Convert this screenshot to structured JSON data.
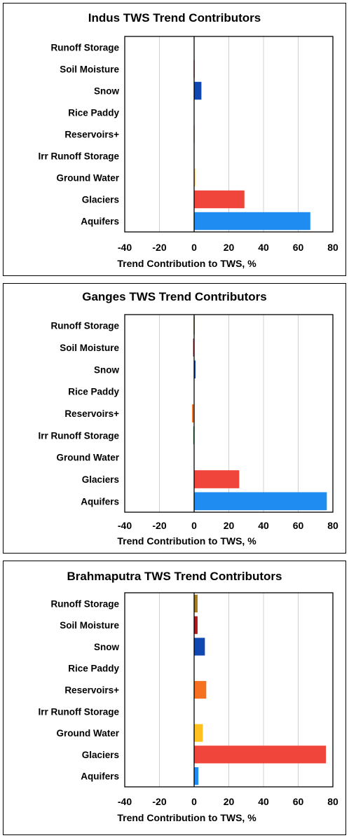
{
  "chart_data": [
    {
      "type": "bar",
      "orientation": "horizontal",
      "title": "Indus TWS Trend Contributors",
      "xlabel": "Trend Contribution to TWS, %",
      "xlim": [
        -40,
        80
      ],
      "xticks": [
        -40,
        -20,
        0,
        20,
        40,
        60,
        80
      ],
      "grid": true,
      "categories": [
        "Runoff Storage",
        "Soil Moisture",
        "Snow",
        "Rice Paddy",
        "Reservoirs+",
        "Irr Runoff Storage",
        "Ground Water",
        "Glaciers",
        "Aquifers"
      ],
      "values": [
        0,
        -0.3,
        4.2,
        0,
        -0.3,
        0,
        0.5,
        29,
        67
      ],
      "colors": [
        "#A67C1A",
        "#E0525E",
        "#1047B0",
        "#8A8A8A",
        "#F5A878",
        "#2A9A58",
        "#FFC020",
        "#F0453A",
        "#1E8CF0"
      ]
    },
    {
      "type": "bar",
      "orientation": "horizontal",
      "title": "Ganges TWS Trend Contributors",
      "xlabel": "Trend Contribution to TWS, %",
      "xlim": [
        -40,
        80
      ],
      "xticks": [
        -40,
        -20,
        0,
        20,
        40,
        60,
        80
      ],
      "grid": true,
      "categories": [
        "Runoff Storage",
        "Soil Moisture",
        "Snow",
        "Rice Paddy",
        "Reservoirs+",
        "Irr Runoff Storage",
        "Ground Water",
        "Glaciers",
        "Aquifers"
      ],
      "values": [
        -0.3,
        -0.6,
        0.8,
        0,
        -1.2,
        -0.5,
        0,
        26,
        76.5
      ],
      "colors": [
        "#A67C1A",
        "#C0202A",
        "#1047B0",
        "#8A8A8A",
        "#F57020",
        "#2A9A58",
        "#FFC020",
        "#F0453A",
        "#1E8CF0"
      ]
    },
    {
      "type": "bar",
      "orientation": "horizontal",
      "title": "Brahmaputra TWS Trend Contributors",
      "xlabel": "Trend Contribution to TWS, %",
      "xlim": [
        -40,
        80
      ],
      "xticks": [
        -40,
        -20,
        0,
        20,
        40,
        60,
        80
      ],
      "grid": true,
      "categories": [
        "Runoff Storage",
        "Soil Moisture",
        "Snow",
        "Rice Paddy",
        "Reservoirs+",
        "Irr Runoff Storage",
        "Ground Water",
        "Glaciers",
        "Aquifers"
      ],
      "values": [
        2,
        2,
        6.2,
        0,
        7,
        0,
        5,
        76,
        2.5
      ],
      "colors": [
        "#A67C1A",
        "#B0181E",
        "#1047B0",
        "#8A8A8A",
        "#F57020",
        "#2A9A58",
        "#FFC020",
        "#F0453A",
        "#1E8CF0"
      ]
    }
  ]
}
